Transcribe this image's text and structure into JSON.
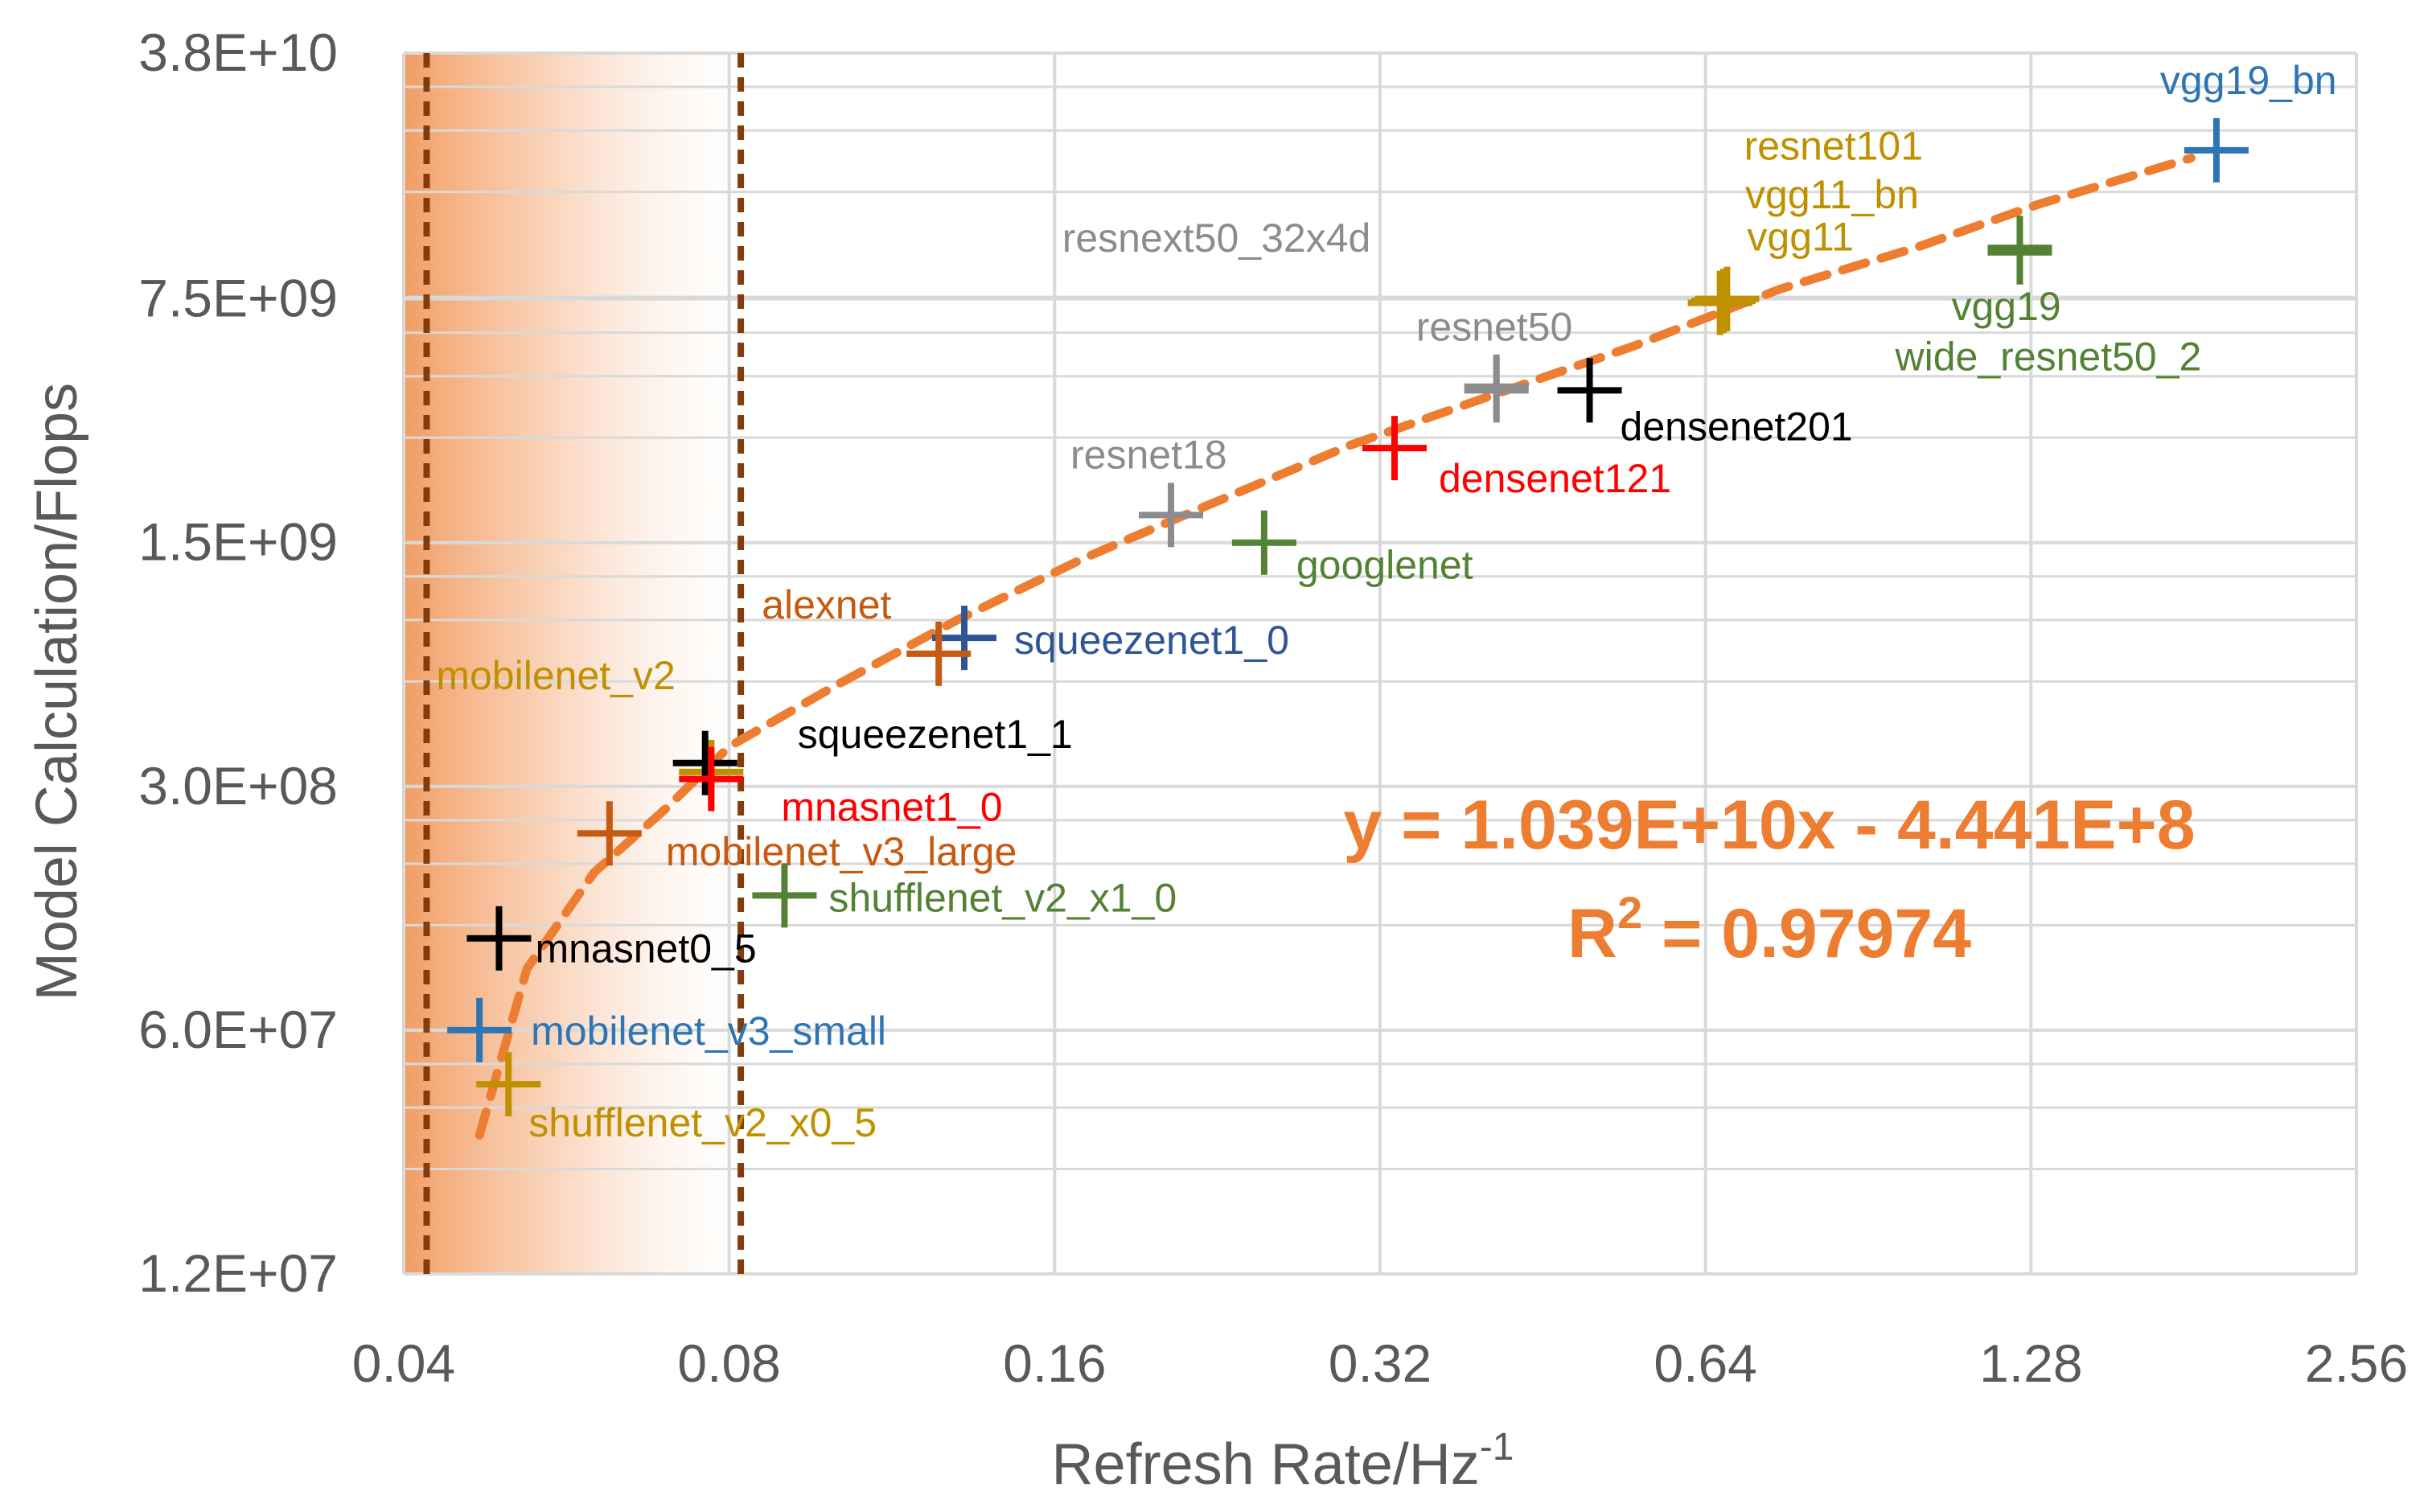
{
  "chart_data": {
    "type": "scatter",
    "title": "",
    "xlabel": "Refresh Rate/Hz",
    "xlabel_sup": "-1",
    "ylabel": "Model Calculation/Flops",
    "x_scale": "log2",
    "y_scale": "log5",
    "xlim": [
      0.04,
      2.56
    ],
    "ylim": [
      12000000,
      38000000000
    ],
    "x_ticks": [
      0.04,
      0.08,
      0.16,
      0.32,
      0.64,
      1.28,
      2.56
    ],
    "x_tick_labels": [
      "0.04",
      "0.08",
      "0.16",
      "0.32",
      "0.64",
      "1.28",
      "2.56"
    ],
    "y_ticks": [
      12000000,
      60000000,
      300000000,
      1500000000,
      7500000000,
      38000000000
    ],
    "y_tick_labels": [
      "1.2E+07",
      "6.0E+07",
      "3.0E+08",
      "1.5E+09",
      "7.5E+09",
      "3.8E+10"
    ],
    "points": [
      {
        "name": "vgg19_bn",
        "label": "vgg19_bn",
        "x": 1.9,
        "y": 20000000000,
        "color": "#2E75B6"
      },
      {
        "name": "vgg19",
        "label": "vgg19",
        "x": 1.25,
        "y": 10500000000,
        "color": "#548235"
      },
      {
        "name": "wide_resnet50_2",
        "label": "wide_resnet50_2",
        "x": 1.25,
        "y": 10200000000,
        "color": "#548235"
      },
      {
        "name": "resnet101",
        "label": "resnet101",
        "x": 0.66,
        "y": 7300000000,
        "color": "#BF9000"
      },
      {
        "name": "vgg11_bn",
        "label": "vgg11_bn",
        "x": 0.665,
        "y": 7400000000,
        "color": "#BF9000"
      },
      {
        "name": "vgg11",
        "label": "vgg11",
        "x": 0.67,
        "y": 7500000000,
        "color": "#BF9000"
      },
      {
        "name": "resnext50_32x4d",
        "label": "resnext50_32x4d",
        "x": 0.41,
        "y": 4200000000,
        "color": "#8C8C8C"
      },
      {
        "name": "resnet50",
        "label": "resnet50",
        "x": 0.41,
        "y": 4100000000,
        "color": "#8C8C8C"
      },
      {
        "name": "densenet201",
        "label": "densenet201",
        "x": 0.5,
        "y": 4100000000,
        "color": "#000000"
      },
      {
        "name": "densenet121",
        "label": "densenet121",
        "x": 0.33,
        "y": 2800000000,
        "color": "#FF0000"
      },
      {
        "name": "resnet18",
        "label": "resnet18",
        "x": 0.205,
        "y": 1800000000,
        "color": "#8C8C8C"
      },
      {
        "name": "googlenet",
        "label": "googlenet",
        "x": 0.25,
        "y": 1500000000,
        "color": "#548235"
      },
      {
        "name": "squeezenet1_0",
        "label": "squeezenet1_0",
        "x": 0.132,
        "y": 800000000,
        "color": "#2F5597"
      },
      {
        "name": "alexnet",
        "label": "alexnet",
        "x": 0.125,
        "y": 720000000,
        "color": "#C55A11"
      },
      {
        "name": "mobilenet_v2",
        "label": "mobilenet_v2",
        "x": 0.077,
        "y": 330000000,
        "color": "#BF9000"
      },
      {
        "name": "squeezenet1_1",
        "label": "squeezenet1_1",
        "x": 0.076,
        "y": 350000000,
        "color": "#000000"
      },
      {
        "name": "mnasnet1_0",
        "label": "mnasnet1_0",
        "x": 0.077,
        "y": 315000000,
        "color": "#FF0000"
      },
      {
        "name": "mobilenet_v3_large",
        "label": "mobilenet_v3_large",
        "x": 0.062,
        "y": 220000000,
        "color": "#C55A11"
      },
      {
        "name": "shufflenet_v2_x1_0",
        "label": "shufflenet_v2_x1_0",
        "x": 0.09,
        "y": 146000000,
        "color": "#548235"
      },
      {
        "name": "mnasnet0_5",
        "label": "mnasnet0_5",
        "x": 0.049,
        "y": 110000000,
        "color": "#000000"
      },
      {
        "name": "mobilenet_v3_small",
        "label": "mobilenet_v3_small",
        "x": 0.047,
        "y": 60000000,
        "color": "#2E75B6"
      },
      {
        "name": "shufflenet_v2_x0_5",
        "label": "shufflenet_v2_x0_5",
        "x": 0.05,
        "y": 42000000,
        "color": "#BF9000"
      }
    ],
    "trendline": {
      "type": "power",
      "samples_x": [
        0.047,
        0.052,
        0.06,
        0.07,
        0.08,
        0.1,
        0.13,
        0.17,
        0.22,
        0.3,
        0.4,
        0.55,
        0.75,
        1.0,
        1.3,
        1.8
      ],
      "samples_y": [
        30000000,
        90000000,
        170000000,
        260000000,
        390000000,
        580000000,
        900000000,
        1350000000,
        1900000000,
        2850000000,
        3900000000,
        5500000000,
        8000000000,
        10500000000,
        14000000000,
        19000000000
      ],
      "color": "#ED7D31",
      "equation": "y = 1.039E+10x - 4.441E+8",
      "r2_prefix": "R",
      "r2_sup": "2",
      "r2_value": " = 0.97974"
    },
    "reference_lines_x": [
      0.042,
      0.082
    ],
    "reference_line_color": "#843C0C",
    "shaded_region_x": [
      0.04,
      0.08
    ],
    "shade_color": "#F4B183",
    "grid": true,
    "legend": "none"
  }
}
